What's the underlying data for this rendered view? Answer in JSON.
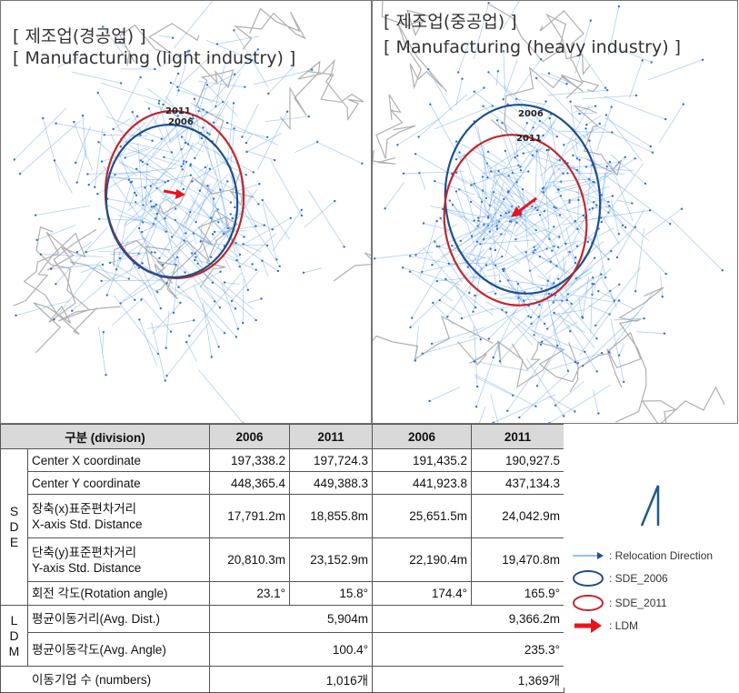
{
  "maps": {
    "left": {
      "title_ko": "[ 제조업(경공업) ]",
      "title_en": "[ Manufacturing (light industry) ]",
      "label_2011": "2011",
      "label_2006": "2006"
    },
    "right": {
      "title_ko": "[ 제조업(중공업) ]",
      "title_en": "[ Manufacturing (heavy industry) ]",
      "label_2006": "2006",
      "label_2011": "2011"
    }
  },
  "colors": {
    "sde_2006": "#1f4e8c",
    "sde_2011": "#c0272d",
    "ldm": "#e8141b",
    "relocation": "#6fa8e8",
    "boundary": "#b0b0b0"
  },
  "table": {
    "header": {
      "division": "구분 (division)",
      "y2006a": "2006",
      "y2011a": "2011",
      "y2006b": "2006",
      "y2011b": "2011"
    },
    "sde_label": [
      "S",
      "D",
      "E"
    ],
    "ldm_label": [
      "L",
      "D",
      "M"
    ],
    "rows": [
      {
        "label": "Center X coordinate",
        "v": [
          "197,338.2",
          "197,724.3",
          "191,435.2",
          "190,927.5"
        ]
      },
      {
        "label": "Center Y coordinate",
        "v": [
          "448,365.4",
          "449,388.3",
          "441,923.8",
          "437,134.3"
        ]
      },
      {
        "label": "장축(x)표준편차거리",
        "label2": "X-axis Std. Distance",
        "v": [
          "17,791.2m",
          "18,855.8m",
          "25,651.5m",
          "24,042.9m"
        ]
      },
      {
        "label": "단축(y)표준편차거리",
        "label2": "Y-axis Std. Distance",
        "v": [
          "20,810.3m",
          "23,152.9m",
          "22,190.4m",
          "19,470.8m"
        ]
      },
      {
        "label": "회전 각도(Rotation angle)",
        "v": [
          "23.1°",
          "15.8°",
          "174.4°",
          "165.9°"
        ]
      }
    ],
    "ldm_rows": [
      {
        "label": "평균이동거리(Avg. Dist.)",
        "v": [
          "5,904m",
          "9,366.2m"
        ]
      },
      {
        "label": "평균이동각도(Avg. Angle)",
        "v": [
          "100.4°",
          "235.3°"
        ]
      }
    ],
    "count_row": {
      "label": "이동기업 수 (numbers)",
      "v": [
        "1,016개",
        "1,369개"
      ]
    }
  },
  "legend": {
    "relocation": ": Relocation Direction",
    "sde_2006": ": SDE_2006",
    "sde_2011": ": SDE_2011",
    "ldm": ": LDM"
  }
}
